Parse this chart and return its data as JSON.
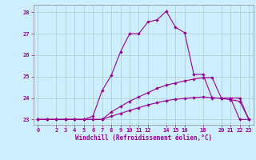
{
  "xlabel": "Windchill (Refroidissement éolien,°C)",
  "bg_color": "#cceeff",
  "line_color": "#990099",
  "grid_color": "#aacccc",
  "ylim": [
    22.75,
    28.35
  ],
  "yticks": [
    23,
    24,
    25,
    26,
    27,
    28
  ],
  "xlim": [
    -0.5,
    23.5
  ],
  "xticks": [
    0,
    2,
    3,
    4,
    5,
    6,
    7,
    8,
    9,
    10,
    11,
    12,
    14,
    15,
    16,
    18,
    20,
    21,
    22,
    23
  ],
  "series": [
    {
      "x": [
        0,
        1,
        2,
        3,
        4,
        5,
        6,
        7,
        8,
        9,
        10,
        11,
        12,
        13,
        14,
        15,
        16,
        17,
        18,
        19,
        20,
        21,
        22,
        23
      ],
      "y": [
        23,
        23,
        23,
        23,
        23,
        23,
        23.15,
        24.35,
        25.05,
        26.15,
        27.0,
        27.0,
        27.55,
        27.65,
        28.05,
        27.3,
        27.05,
        25.1,
        25.1,
        24.0,
        24.0,
        24.0,
        23.0,
        23.0
      ]
    },
    {
      "x": [
        0,
        1,
        2,
        3,
        4,
        5,
        6,
        7,
        8,
        9,
        10,
        11,
        12,
        13,
        14,
        15,
        16,
        17,
        18,
        19,
        20,
        21,
        22,
        23
      ],
      "y": [
        23,
        23,
        23,
        23,
        23,
        23,
        23,
        23,
        23.35,
        23.6,
        23.85,
        24.05,
        24.25,
        24.45,
        24.6,
        24.7,
        24.8,
        24.88,
        24.95,
        24.95,
        24.0,
        24.0,
        24.0,
        23.0
      ]
    },
    {
      "x": [
        0,
        1,
        2,
        3,
        4,
        5,
        6,
        7,
        8,
        9,
        10,
        11,
        12,
        13,
        14,
        15,
        16,
        17,
        18,
        19,
        20,
        21,
        22,
        23
      ],
      "y": [
        23,
        23,
        23,
        23,
        23,
        23,
        23,
        23,
        23.15,
        23.28,
        23.42,
        23.55,
        23.68,
        23.78,
        23.88,
        23.94,
        23.98,
        24.02,
        24.05,
        24.02,
        23.98,
        23.92,
        23.85,
        23.0
      ]
    }
  ]
}
